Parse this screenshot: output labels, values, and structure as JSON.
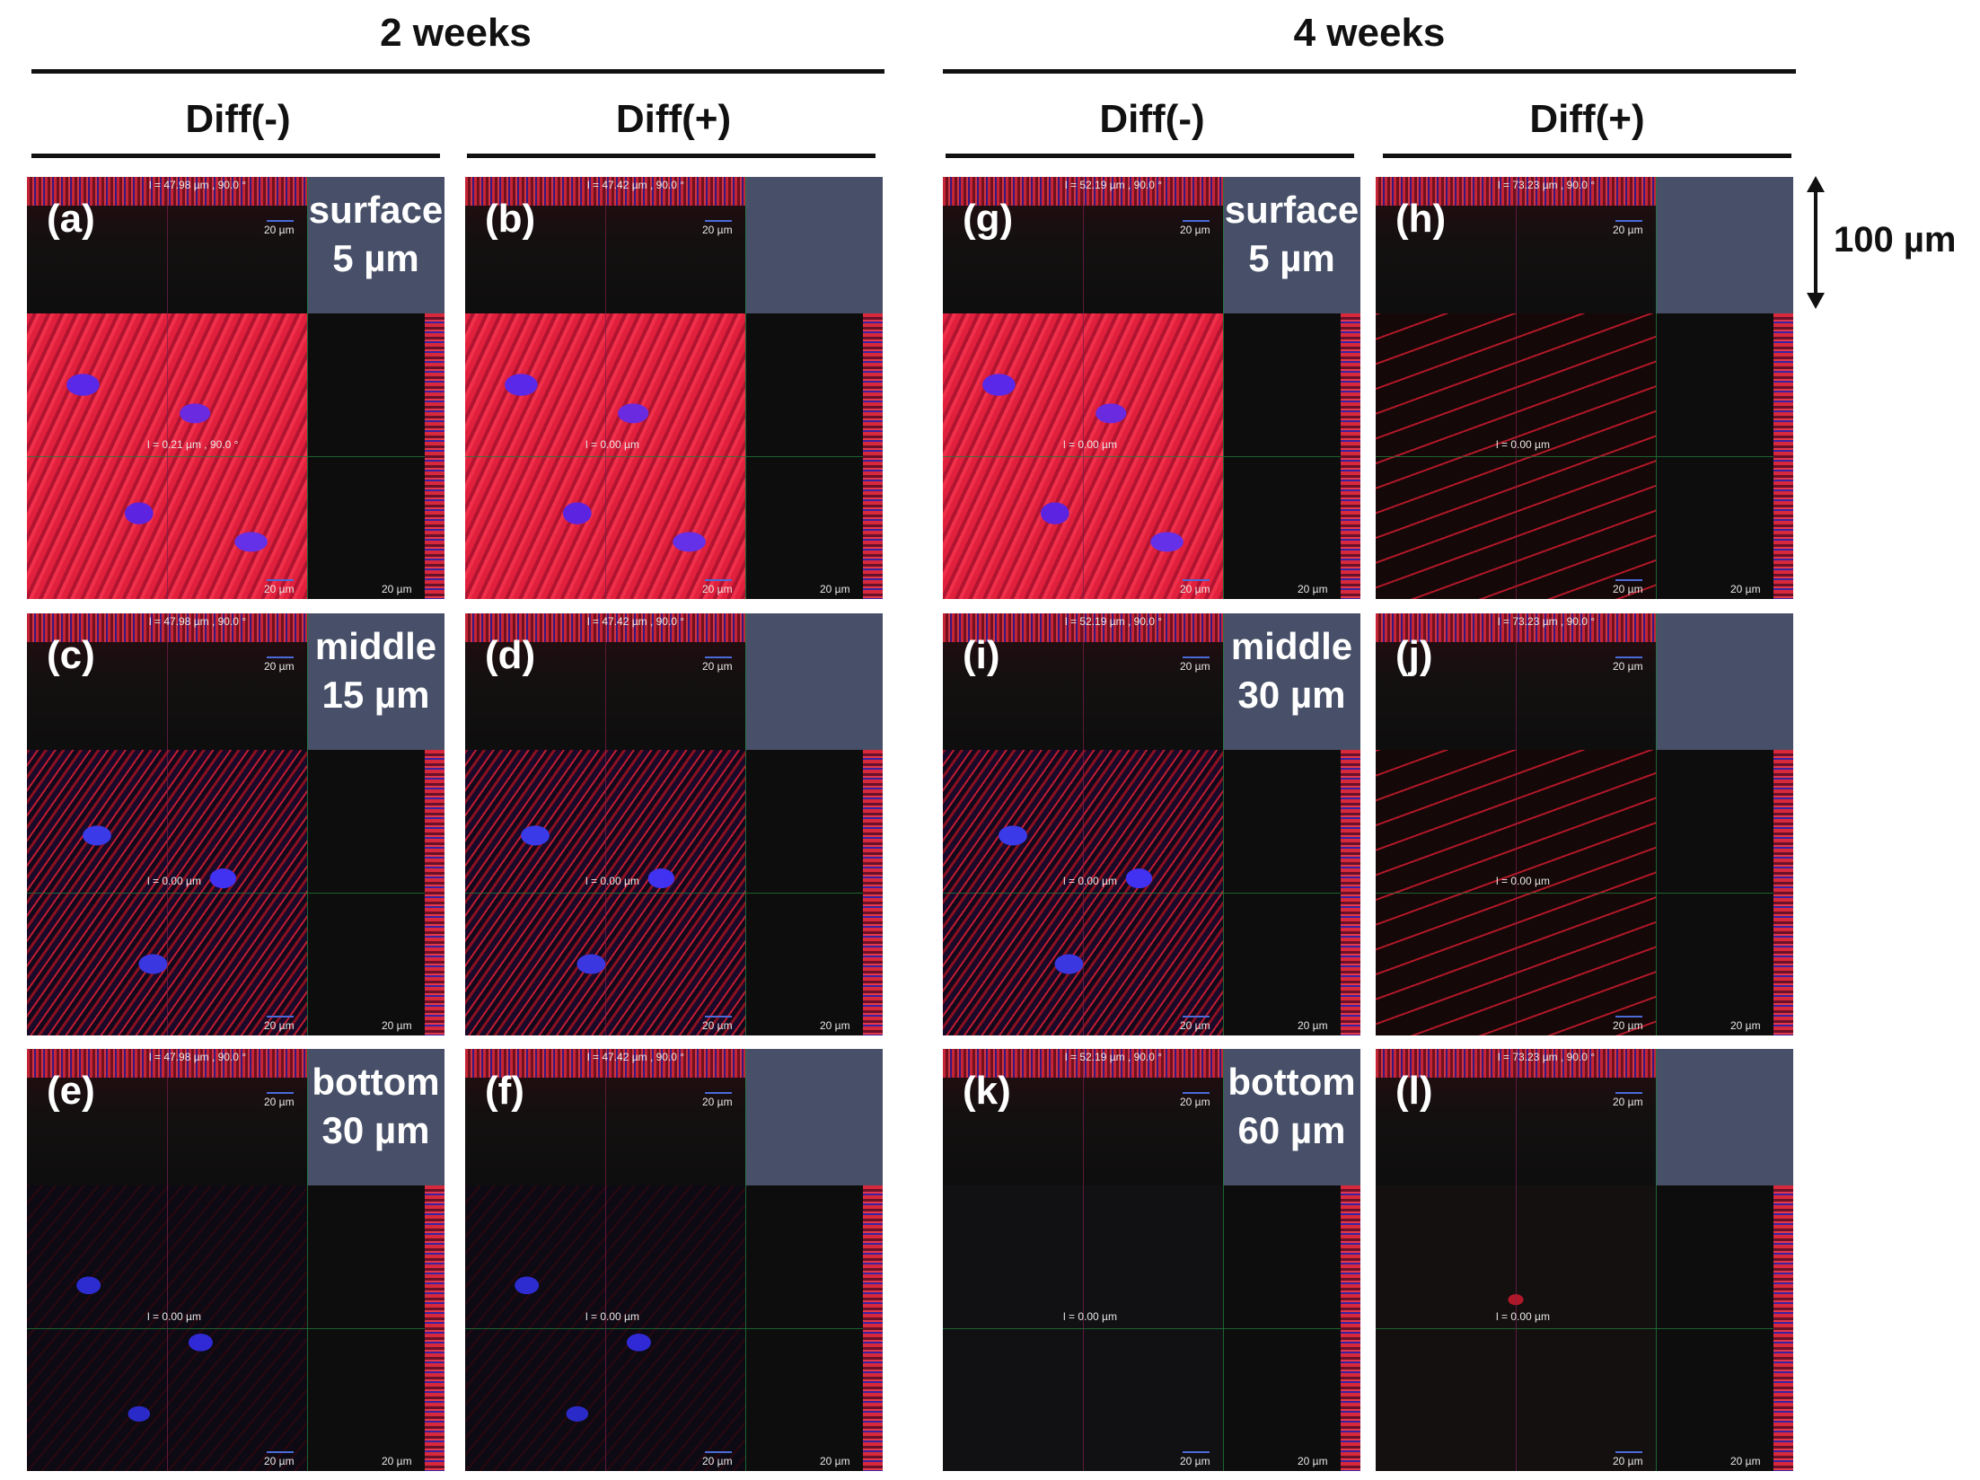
{
  "groups": [
    {
      "label": "2 weeks"
    },
    {
      "label": "4 weeks"
    }
  ],
  "columns": [
    {
      "label": "Diff(-)"
    },
    {
      "label": "Diff(+)"
    },
    {
      "label": "Diff(-)"
    },
    {
      "label": "Diff(+)"
    }
  ],
  "scale_bar": {
    "label": "100 µm"
  },
  "panels": [
    {
      "letter": "(a)",
      "top_readout": "l = 47.98 µm ,  90.0 °",
      "main_readout": "l = 0.21 µm ,  90.0 °",
      "scale": "20 µm",
      "side_scale": "20 µm",
      "depth": "surface",
      "depth_value": "5 µm"
    },
    {
      "letter": "(b)",
      "top_readout": "l = 47.42 µm ,  90.0 °",
      "main_readout": "l = 0.00 µm",
      "scale": "20 µm",
      "side_scale": "20 µm"
    },
    {
      "letter": "(g)",
      "top_readout": "l = 52.19 µm ,  90.0 °",
      "main_readout": "l = 0.00 µm",
      "scale": "20 µm",
      "side_scale": "20 µm",
      "depth": "surface",
      "depth_value": "5 µm"
    },
    {
      "letter": "(h)",
      "top_readout": "l = 73.23 µm ,  90.0 °",
      "main_readout": "l = 0.00 µm",
      "scale": "20 µm",
      "side_scale": "20 µm"
    },
    {
      "letter": "(c)",
      "top_readout": "l = 47.98 µm ,  90.0 °",
      "main_readout": "l = 0.00 µm",
      "scale": "20 µm",
      "side_scale": "20 µm",
      "depth": "middle",
      "depth_value": "15 µm"
    },
    {
      "letter": "(d)",
      "top_readout": "l = 47.42 µm ,  90.0 °",
      "main_readout": "l = 0.00 µm",
      "scale": "20 µm",
      "side_scale": "20 µm"
    },
    {
      "letter": "(i)",
      "top_readout": "l = 52.19 µm ,  90.0 °",
      "main_readout": "l = 0.00 µm",
      "scale": "20 µm",
      "side_scale": "20 µm",
      "depth": "middle",
      "depth_value": "30 µm"
    },
    {
      "letter": "(j)",
      "top_readout": "l = 73.23 µm ,  90.0 °",
      "main_readout": "l = 0.00 µm",
      "scale": "20 µm",
      "side_scale": "20 µm"
    },
    {
      "letter": "(e)",
      "top_readout": "l = 47.98 µm ,  90.0 °",
      "main_readout": "l = 0.00 µm",
      "scale": "20 µm",
      "side_scale": "20 µm",
      "depth": "bottom",
      "depth_value": "30 µm"
    },
    {
      "letter": "(f)",
      "top_readout": "l = 47.42 µm ,  90.0 °",
      "main_readout": "l = 0.00 µm",
      "scale": "20 µm",
      "side_scale": "20 µm"
    },
    {
      "letter": "(k)",
      "top_readout": "l = 52.19 µm ,  90.0 °",
      "main_readout": "l = 0.00 µm",
      "scale": "20 µm",
      "side_scale": "20 µm",
      "depth": "bottom",
      "depth_value": "60 µm"
    },
    {
      "letter": "(l)",
      "top_readout": "l = 73.23 µm ,  90.0 °",
      "main_readout": "l = 0.00 µm",
      "scale": "20 µm",
      "side_scale": "20 µm"
    }
  ],
  "colors": {
    "actin": "#e0203c",
    "nuclei": "#4a3ae8",
    "corner": "#475068"
  }
}
